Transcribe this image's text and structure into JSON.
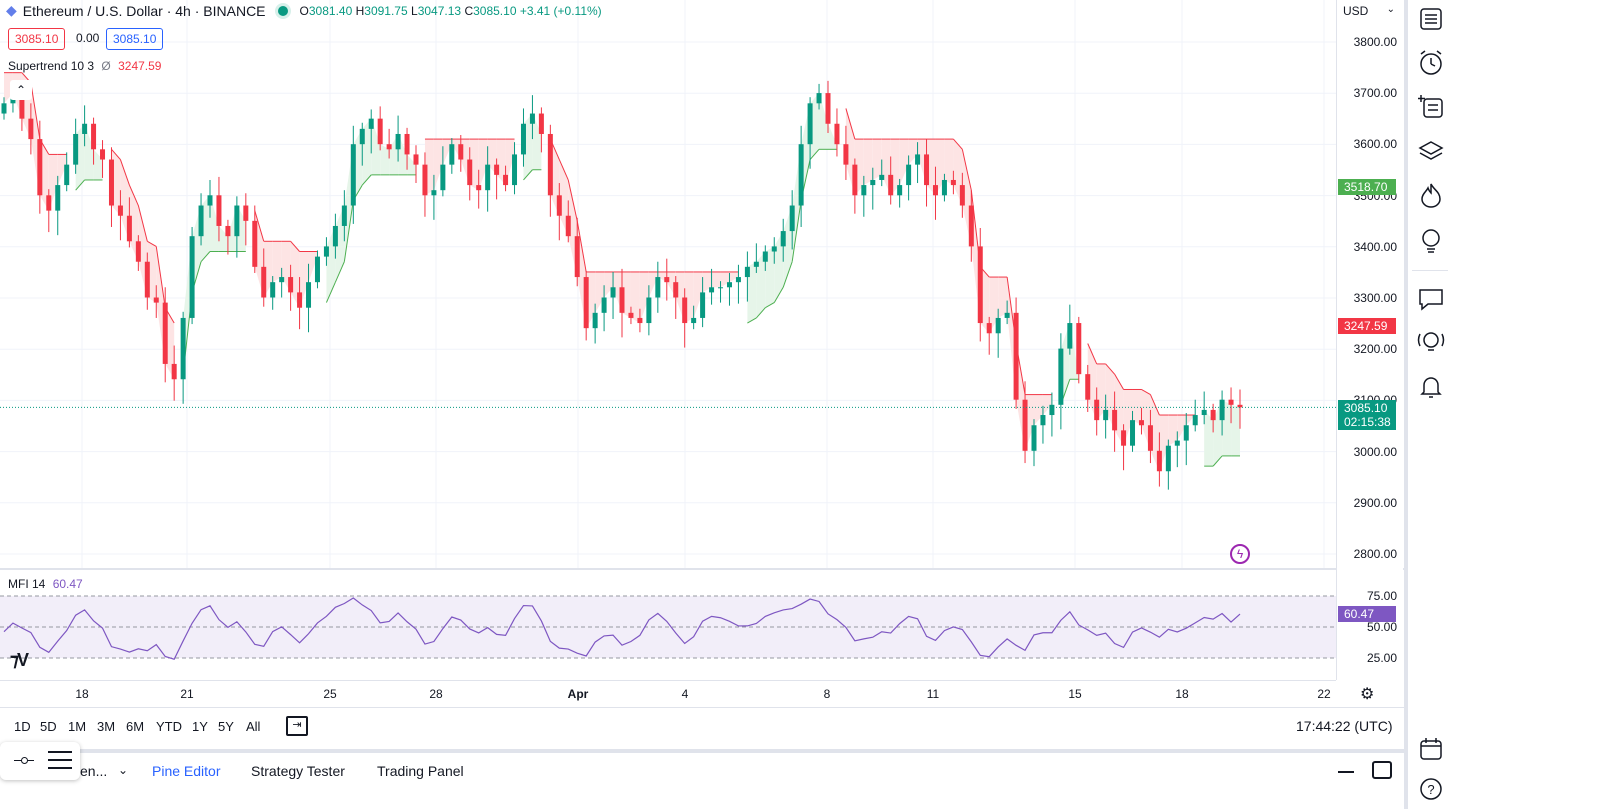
{
  "header": {
    "symbol_title": "Ethereum / U.S. Dollar · 4h · BINANCE",
    "ohlc": {
      "o_label": "O",
      "o": "3081.40",
      "h_label": "H",
      "h": "3091.75",
      "l_label": "L",
      "l": "3047.13",
      "c_label": "C",
      "c": "3085.10",
      "change": "+3.41 (+0.11%)"
    },
    "bid": "3085.10",
    "spread": "0.00",
    "ask": "3085.10"
  },
  "indicators": {
    "supertrend": {
      "label": "Supertrend 10 3",
      "symbol": "Ø",
      "value": "3247.59"
    },
    "mfi": {
      "label": "MFI 14",
      "value": "60.47"
    }
  },
  "price_axis": {
    "currency": "USD",
    "labels": [
      "3800.00",
      "3700.00",
      "3600.00",
      "3500.00",
      "3400.00",
      "3300.00",
      "3200.00",
      "3100.00",
      "3000.00",
      "2900.00",
      "2800.00"
    ],
    "badges": {
      "upper_band": "3518.70",
      "supertrend": "3247.59",
      "last": "3085.10",
      "countdown": "02:15:38"
    }
  },
  "mfi_axis": {
    "labels": [
      "75.00",
      "50.00",
      "25.00"
    ],
    "badge": "60.47"
  },
  "time_axis": {
    "ticks": [
      "18",
      "21",
      "25",
      "28",
      "Apr",
      "4",
      "8",
      "11",
      "15",
      "18",
      "22"
    ]
  },
  "bottom_toolbar": {
    "ranges": [
      "1D",
      "5D",
      "1M",
      "3M",
      "6M",
      "YTD",
      "1Y",
      "5Y",
      "All"
    ],
    "clock": "17:44:22 (UTC)"
  },
  "panel_tabs": {
    "screener": "en...",
    "pine": "Pine Editor",
    "strategy": "Strategy Tester",
    "trading": "Trading Panel"
  },
  "colors": {
    "up": "#089981",
    "down": "#f23645",
    "st_up_fill": "#e6f5e9",
    "st_down_fill": "#fde4e4",
    "mfi": "#7e57c2",
    "accent": "#2962ff"
  },
  "toolbar_icons": [
    "watchlist-icon",
    "alert-icon",
    "add-list-icon",
    "layers-icon",
    "hotlist-icon",
    "ideas-icon",
    "chat-icon",
    "streams-icon",
    "notifications-icon",
    "calendar-icon",
    "help-icon"
  ],
  "chart_data": {
    "type": "candlestick",
    "price_range": [
      2800,
      3800
    ],
    "x_ticks": [
      "18",
      "21",
      "25",
      "28",
      "Apr",
      "4",
      "8",
      "11",
      "15",
      "18",
      "22"
    ],
    "closes": [
      3680,
      3700,
      3650,
      3610,
      3500,
      3470,
      3520,
      3560,
      3620,
      3640,
      3590,
      3570,
      3480,
      3460,
      3410,
      3370,
      3300,
      3290,
      3170,
      3140,
      3260,
      3420,
      3480,
      3500,
      3440,
      3420,
      3480,
      3450,
      3360,
      3300,
      3330,
      3340,
      3310,
      3280,
      3330,
      3380,
      3400,
      3440,
      3480,
      3600,
      3630,
      3650,
      3600,
      3590,
      3620,
      3580,
      3560,
      3500,
      3510,
      3560,
      3600,
      3570,
      3520,
      3510,
      3560,
      3540,
      3520,
      3580,
      3640,
      3660,
      3620,
      3500,
      3460,
      3420,
      3340,
      3240,
      3270,
      3300,
      3320,
      3270,
      3260,
      3250,
      3300,
      3340,
      3330,
      3300,
      3250,
      3260,
      3310,
      3320,
      3320,
      3330,
      3340,
      3360,
      3370,
      3390,
      3400,
      3430,
      3480,
      3600,
      3680,
      3700,
      3640,
      3600,
      3560,
      3500,
      3520,
      3530,
      3540,
      3500,
      3520,
      3560,
      3580,
      3520,
      3500,
      3530,
      3520,
      3480,
      3400,
      3250,
      3230,
      3260,
      3270,
      3100,
      3000,
      3050,
      3070,
      3090,
      3200,
      3250,
      3150,
      3100,
      3060,
      3080,
      3040,
      3010,
      3060,
      3050,
      3000,
      2960,
      3010,
      3020,
      3050,
      3070,
      3080,
      3060,
      3100,
      3090,
      3085.1
    ]
  }
}
